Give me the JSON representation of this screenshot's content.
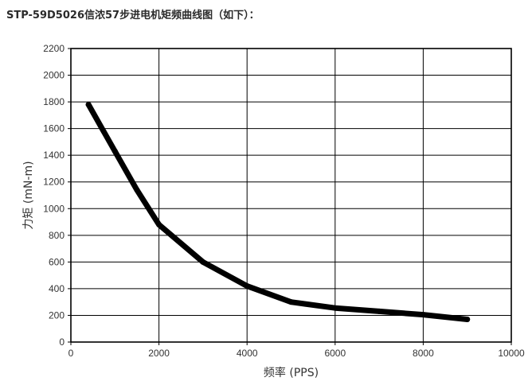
{
  "page": {
    "heading": "STP-59D5026信浓57步进电机矩频曲线图（如下）："
  },
  "chart_data": {
    "type": "line",
    "title": "",
    "xlabel": "频率 (PPS)",
    "ylabel": "力矩 (mN-m)",
    "xlim": [
      0,
      10000
    ],
    "ylim": [
      0,
      2200
    ],
    "xticks": [
      0,
      2000,
      4000,
      6000,
      8000,
      10000
    ],
    "yticks": [
      0,
      200,
      400,
      600,
      800,
      1000,
      1200,
      1400,
      1600,
      1800,
      2000,
      2200
    ],
    "grid": true,
    "series": [
      {
        "name": "",
        "color": "#000000",
        "x": [
          400,
          1000,
          1500,
          2000,
          3000,
          4000,
          5000,
          6000,
          7000,
          8000,
          9000
        ],
        "y": [
          1780,
          1430,
          1140,
          880,
          600,
          420,
          300,
          255,
          230,
          205,
          170
        ]
      }
    ]
  }
}
